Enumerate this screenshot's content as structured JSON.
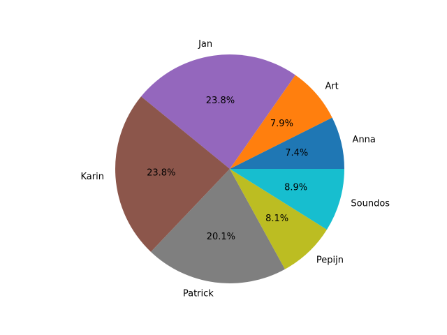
{
  "chart_data": {
    "type": "pie",
    "title": "",
    "start_angle_deg": 0,
    "direction": "counterclockwise",
    "slices": [
      {
        "label": "Anna",
        "value": 7.4,
        "pct_label": "7.4%",
        "color": "#1f77b4"
      },
      {
        "label": "Art",
        "value": 7.9,
        "pct_label": "7.9%",
        "color": "#ff7f0e"
      },
      {
        "label": "Jan",
        "value": 23.8,
        "pct_label": "23.8%",
        "color": "#9467bd"
      },
      {
        "label": "Karin",
        "value": 23.8,
        "pct_label": "23.8%",
        "color": "#8c564b"
      },
      {
        "label": "Patrick",
        "value": 20.1,
        "pct_label": "20.1%",
        "color": "#7f7f7f"
      },
      {
        "label": "Pepijn",
        "value": 8.1,
        "pct_label": "8.1%",
        "color": "#bcbd22"
      },
      {
        "label": "Soundos",
        "value": 8.9,
        "pct_label": "8.9%",
        "color": "#17becf"
      }
    ]
  }
}
